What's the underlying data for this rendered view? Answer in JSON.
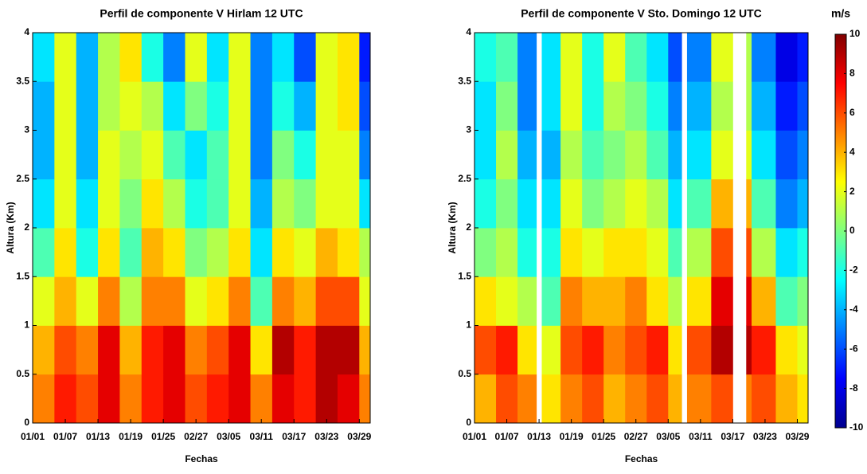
{
  "chart_data": [
    {
      "type": "heatmap",
      "title": "Perfil de componente V Hirlam 12 UTC",
      "xlabel": "Fechas",
      "ylabel": "Altura (Km)",
      "colormap": "jet",
      "xlim": [
        0,
        62
      ],
      "ylim": [
        0,
        4
      ],
      "xticks": [
        {
          "value": 0,
          "label": "01/01"
        },
        {
          "value": 6,
          "label": "01/07"
        },
        {
          "value": 12,
          "label": "01/13"
        },
        {
          "value": 18,
          "label": "01/19"
        },
        {
          "value": 24,
          "label": "01/25"
        },
        {
          "value": 30,
          "label": "02/27"
        },
        {
          "value": 36,
          "label": "03/05"
        },
        {
          "value": 42,
          "label": "03/11"
        },
        {
          "value": 48,
          "label": "03/17"
        },
        {
          "value": 54,
          "label": "03/23"
        },
        {
          "value": 60,
          "label": "03/29"
        }
      ],
      "yticks": [
        0,
        0.5,
        1,
        1.5,
        2,
        2.5,
        3,
        3.5,
        4
      ],
      "x_edges": [
        0,
        4,
        8,
        12,
        16,
        20,
        24,
        28,
        32,
        36,
        40,
        44,
        48,
        52,
        56,
        60,
        62
      ],
      "y_edges": [
        0,
        0.5,
        1,
        1.5,
        2,
        2.5,
        3,
        3.5,
        4
      ],
      "z": [
        [
          5,
          7,
          6,
          8,
          5,
          7,
          8,
          6,
          7,
          8,
          5,
          8,
          7,
          9,
          8,
          5
        ],
        [
          4,
          6,
          5,
          8,
          4,
          7,
          8,
          5,
          6,
          8,
          3,
          9,
          7,
          9,
          9,
          4
        ],
        [
          2,
          4,
          2,
          5,
          1,
          5,
          5,
          2,
          3,
          5,
          -1,
          5,
          4,
          6,
          6,
          2
        ],
        [
          -1,
          3,
          -2,
          3,
          -1,
          4,
          3,
          0,
          1,
          3,
          -3,
          3,
          2,
          4,
          3,
          1
        ],
        [
          -3,
          2,
          -3,
          2,
          0,
          3,
          1,
          -2,
          -1,
          2,
          -4,
          1,
          0,
          2,
          2,
          -3
        ],
        [
          -4,
          2,
          -4,
          2,
          1,
          2,
          -1,
          -3,
          -1,
          2,
          -5,
          0,
          -2,
          2,
          2,
          -5
        ],
        [
          -4,
          2,
          -4,
          1,
          2,
          1,
          -3,
          0,
          -2,
          2,
          -5,
          -2,
          -4,
          2,
          3,
          -6
        ],
        [
          -3,
          2,
          -4,
          1,
          3,
          -2,
          -5,
          2,
          -3,
          2,
          -5,
          -3,
          -6,
          2,
          3,
          -7
        ]
      ]
    },
    {
      "type": "heatmap",
      "title": "Perfil de componente V Sto. Domingo 12 UTC",
      "xlabel": "Fechas",
      "ylabel": "Altura (Km)",
      "colormap": "jet",
      "xlim": [
        0,
        62
      ],
      "ylim": [
        0,
        4
      ],
      "xticks": [
        {
          "value": 0,
          "label": "01/01"
        },
        {
          "value": 6,
          "label": "01/07"
        },
        {
          "value": 12,
          "label": "01/13"
        },
        {
          "value": 18,
          "label": "01/19"
        },
        {
          "value": 24,
          "label": "01/25"
        },
        {
          "value": 30,
          "label": "02/27"
        },
        {
          "value": 36,
          "label": "03/05"
        },
        {
          "value": 42,
          "label": "03/11"
        },
        {
          "value": 48,
          "label": "03/17"
        },
        {
          "value": 54,
          "label": "03/23"
        },
        {
          "value": 60,
          "label": "03/29"
        }
      ],
      "yticks": [
        0,
        0.5,
        1,
        1.5,
        2,
        2.5,
        3,
        3.5,
        4
      ],
      "x_edges": [
        0,
        4,
        8,
        11.5,
        12.5,
        16,
        20,
        24,
        28,
        32,
        36,
        38.5,
        39.5,
        44,
        48,
        50.5,
        51.5,
        56,
        60,
        62
      ],
      "y_edges": [
        0,
        0.5,
        1,
        1.5,
        2,
        2.5,
        3,
        3.5,
        4
      ],
      "z": [
        [
          4,
          6,
          5,
          null,
          3,
          5,
          6,
          4,
          5,
          6,
          4,
          null,
          5,
          6,
          null,
          5,
          6,
          4,
          3
        ],
        [
          6,
          7,
          3,
          null,
          2,
          6,
          7,
          5,
          6,
          7,
          3,
          null,
          6,
          9,
          null,
          9,
          7,
          3,
          2
        ],
        [
          3,
          2,
          1,
          null,
          -1,
          5,
          4,
          4,
          5,
          3,
          1,
          null,
          3,
          8,
          null,
          8,
          4,
          -1,
          0
        ],
        [
          0,
          1,
          -2,
          null,
          -2,
          3,
          2,
          3,
          3,
          2,
          -1,
          null,
          1,
          6,
          null,
          6,
          1,
          -3,
          -2
        ],
        [
          -2,
          0,
          -3,
          null,
          -3,
          2,
          0,
          1,
          2,
          1,
          -3,
          null,
          -1,
          4,
          null,
          4,
          -1,
          -5,
          -4
        ],
        [
          -3,
          1,
          -4,
          null,
          -4,
          1,
          -1,
          0,
          1,
          -1,
          -4,
          null,
          -3,
          2,
          null,
          2,
          -3,
          -6,
          -5
        ],
        [
          -3,
          0,
          -5,
          null,
          -3,
          2,
          -2,
          1,
          0,
          -2,
          -5,
          null,
          -4,
          1,
          null,
          1,
          -4,
          -7,
          -6
        ],
        [
          -2,
          -1,
          -5,
          null,
          -3,
          2,
          -2,
          2,
          -1,
          -3,
          -6,
          null,
          -5,
          2,
          null,
          1,
          -5,
          -8,
          -7
        ]
      ],
      "colorbar": {
        "label": "m/s",
        "lim": [
          -10,
          10
        ],
        "ticks": [
          10,
          8,
          6,
          4,
          2,
          0,
          -2,
          -4,
          -6,
          -8,
          -10
        ]
      }
    }
  ]
}
